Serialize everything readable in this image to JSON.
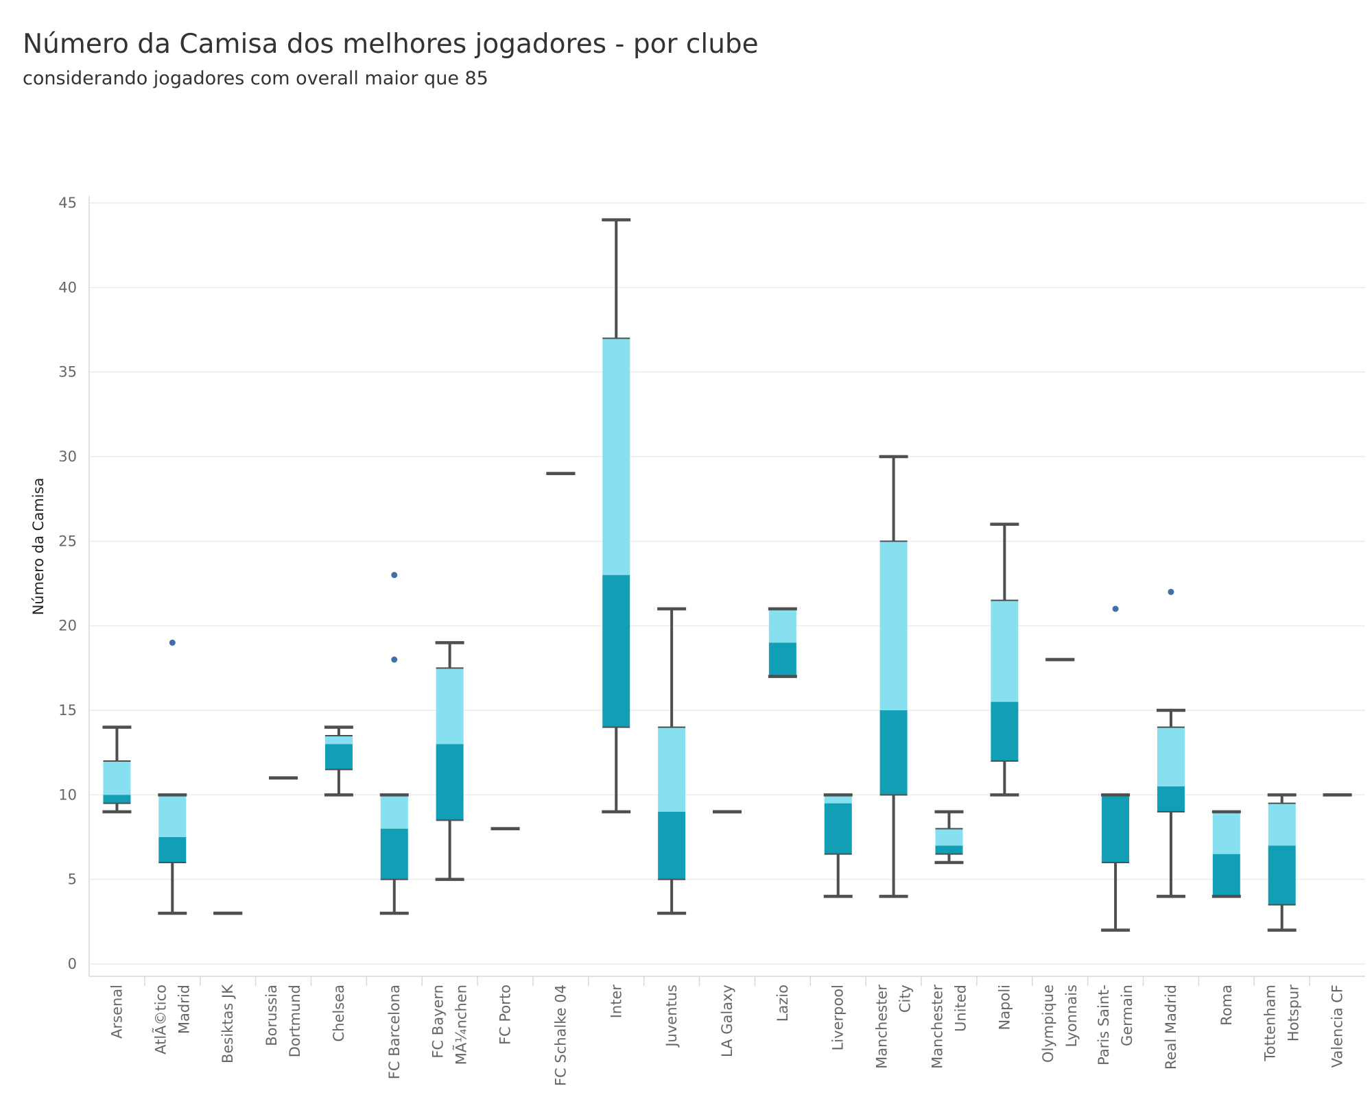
{
  "chart_data": {
    "type": "boxplot",
    "title": "Número da Camisa dos melhores jogadores -  por clube",
    "subtitle": "considerando jogadores com overall maior que 85",
    "ylabel": "Número da Camisa",
    "xlabel": "",
    "ylim": [
      0,
      45
    ],
    "yticks": [
      0,
      5,
      10,
      15,
      20,
      25,
      30,
      35,
      40,
      45
    ],
    "grid": true,
    "colors": {
      "upper_box": "#86e0ef",
      "lower_box": "#129eb5",
      "whisker": "#4f4f4f",
      "outlier": "#3f6fa8"
    },
    "categories": [
      {
        "lines": [
          "Arsenal"
        ]
      },
      {
        "lines": [
          "AtlÃ©tico",
          "Madrid"
        ]
      },
      {
        "lines": [
          "Besiktas JK"
        ]
      },
      {
        "lines": [
          "Borussia",
          "Dortmund"
        ]
      },
      {
        "lines": [
          "Chelsea"
        ]
      },
      {
        "lines": [
          "FC Barcelona"
        ]
      },
      {
        "lines": [
          "FC Bayern",
          "MÃ¼nchen"
        ]
      },
      {
        "lines": [
          "FC Porto"
        ]
      },
      {
        "lines": [
          "FC Schalke 04"
        ]
      },
      {
        "lines": [
          "Inter"
        ]
      },
      {
        "lines": [
          "Juventus"
        ]
      },
      {
        "lines": [
          "LA Galaxy"
        ]
      },
      {
        "lines": [
          "Lazio"
        ]
      },
      {
        "lines": [
          "Liverpool"
        ]
      },
      {
        "lines": [
          "Manchester",
          "City"
        ]
      },
      {
        "lines": [
          "Manchester",
          "United"
        ]
      },
      {
        "lines": [
          "Napoli"
        ]
      },
      {
        "lines": [
          "Olympique",
          "Lyonnais"
        ]
      },
      {
        "lines": [
          "Paris Saint-",
          "Germain"
        ]
      },
      {
        "lines": [
          "Real Madrid"
        ]
      },
      {
        "lines": [
          "Roma"
        ]
      },
      {
        "lines": [
          "Tottenham",
          "Hotspur"
        ]
      },
      {
        "lines": [
          "Valencia CF"
        ]
      }
    ],
    "boxes": [
      {
        "min": 9,
        "q1": 9.5,
        "median": 10,
        "q3": 12,
        "max": 14,
        "outliers": []
      },
      {
        "min": 3,
        "q1": 6,
        "median": 7.5,
        "q3": 10,
        "max": 10,
        "outliers": [
          19
        ]
      },
      {
        "min": 3,
        "q1": 3,
        "median": 3,
        "q3": 3,
        "max": 3,
        "outliers": []
      },
      {
        "min": 11,
        "q1": 11,
        "median": 11,
        "q3": 11,
        "max": 11,
        "outliers": []
      },
      {
        "min": 10,
        "q1": 11.5,
        "median": 13,
        "q3": 13.5,
        "max": 14,
        "outliers": []
      },
      {
        "min": 3,
        "q1": 5,
        "median": 8,
        "q3": 10,
        "max": 10,
        "outliers": [
          18,
          23
        ]
      },
      {
        "min": 5,
        "q1": 8.5,
        "median": 13,
        "q3": 17.5,
        "max": 19,
        "outliers": []
      },
      {
        "min": 8,
        "q1": 8,
        "median": 8,
        "q3": 8,
        "max": 8,
        "outliers": []
      },
      {
        "min": 29,
        "q1": 29,
        "median": 29,
        "q3": 29,
        "max": 29,
        "outliers": []
      },
      {
        "min": 9,
        "q1": 14,
        "median": 23,
        "q3": 37,
        "max": 44,
        "outliers": []
      },
      {
        "min": 3,
        "q1": 5,
        "median": 9,
        "q3": 14,
        "max": 21,
        "outliers": []
      },
      {
        "min": 9,
        "q1": 9,
        "median": 9,
        "q3": 9,
        "max": 9,
        "outliers": []
      },
      {
        "min": 17,
        "q1": 17,
        "median": 19,
        "q3": 21,
        "max": 21,
        "outliers": []
      },
      {
        "min": 4,
        "q1": 6.5,
        "median": 9.5,
        "q3": 10,
        "max": 10,
        "outliers": []
      },
      {
        "min": 4,
        "q1": 10,
        "median": 15,
        "q3": 25,
        "max": 30,
        "outliers": []
      },
      {
        "min": 6,
        "q1": 6.5,
        "median": 7,
        "q3": 8,
        "max": 9,
        "outliers": []
      },
      {
        "min": 10,
        "q1": 12,
        "median": 15.5,
        "q3": 21.5,
        "max": 26,
        "outliers": []
      },
      {
        "min": 18,
        "q1": 18,
        "median": 18,
        "q3": 18,
        "max": 18,
        "outliers": []
      },
      {
        "min": 2,
        "q1": 6,
        "median": 10,
        "q3": 10,
        "max": 10,
        "outliers": [
          21
        ]
      },
      {
        "min": 4,
        "q1": 9,
        "median": 10.5,
        "q3": 14,
        "max": 15,
        "outliers": [
          22
        ]
      },
      {
        "min": 4,
        "q1": 4,
        "median": 6.5,
        "q3": 9,
        "max": 9,
        "outliers": []
      },
      {
        "min": 2,
        "q1": 3.5,
        "median": 7,
        "q3": 9.5,
        "max": 10,
        "outliers": []
      },
      {
        "min": 10,
        "q1": 10,
        "median": 10,
        "q3": 10,
        "max": 10,
        "outliers": []
      }
    ]
  }
}
